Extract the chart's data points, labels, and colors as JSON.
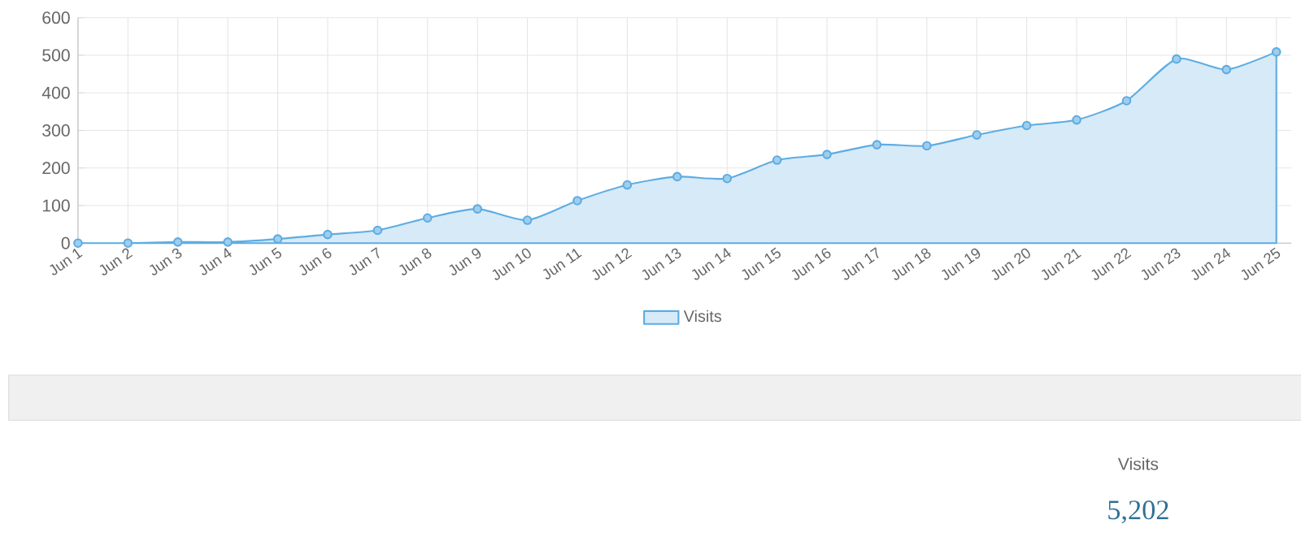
{
  "chart_data": {
    "type": "area",
    "categories": [
      "Jun 1",
      "Jun 2",
      "Jun 3",
      "Jun 4",
      "Jun 5",
      "Jun 6",
      "Jun 7",
      "Jun 8",
      "Jun 9",
      "Jun 10",
      "Jun 11",
      "Jun 12",
      "Jun 13",
      "Jun 14",
      "Jun 15",
      "Jun 16",
      "Jun 17",
      "Jun 18",
      "Jun 19",
      "Jun 20",
      "Jun 21",
      "Jun 22",
      "Jun 23",
      "Jun 24",
      "Jun 25"
    ],
    "series": [
      {
        "name": "Visits",
        "color": "#5dade2",
        "values": [
          0,
          0,
          3,
          3,
          11,
          23,
          34,
          67,
          91,
          61,
          113,
          155,
          177,
          172,
          221,
          236,
          262,
          259,
          288,
          313,
          328,
          379,
          490,
          462,
          509
        ]
      }
    ],
    "ylim": [
      0,
      600
    ],
    "yticks": [
      0,
      100,
      200,
      300,
      400,
      500,
      600
    ],
    "grid": true,
    "legend": "bottom",
    "marker": "circle",
    "annotations": [
      "Visits",
      "5,202"
    ]
  }
}
